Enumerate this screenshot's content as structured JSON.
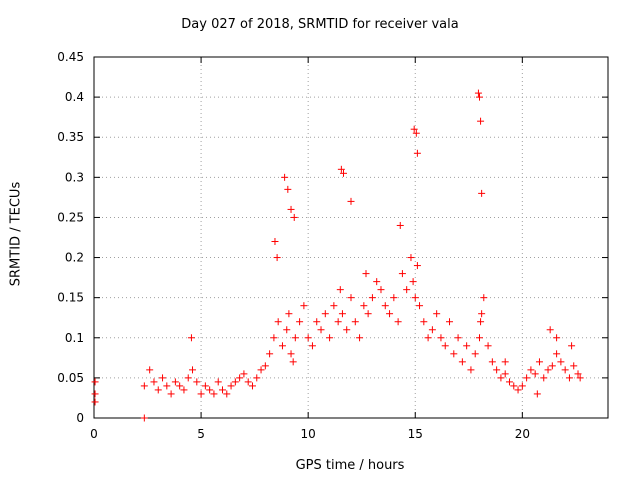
{
  "chart_data": {
    "type": "scatter",
    "title": "Day 027 of 2018, SRMTID for receiver vala",
    "xlabel": "GPS time / hours",
    "ylabel": "SRMTID / TECUs",
    "xlim": [
      0,
      24.0
    ],
    "ylim": [
      0,
      0.45
    ],
    "x_ticks": [
      0,
      5,
      10,
      15,
      20
    ],
    "y_ticks": [
      0,
      0.05,
      0.1,
      0.15,
      0.2,
      0.25,
      0.3,
      0.35,
      0.4,
      0.45
    ],
    "grid": true,
    "marker": "+",
    "color": "#ff0000",
    "series": [
      {
        "name": "SRMTID",
        "x": [
          0.05,
          0.05,
          0.05,
          2.35,
          2.35,
          2.6,
          2.8,
          3.0,
          3.2,
          3.4,
          3.6,
          3.8,
          4.0,
          4.2,
          4.4,
          4.6,
          4.8,
          5.0,
          5.2,
          5.4,
          5.6,
          5.8,
          6.0,
          6.2,
          6.4,
          6.6,
          6.8,
          7.0,
          7.2,
          7.4,
          7.6,
          7.8,
          8.0,
          8.2,
          8.4,
          8.6,
          8.8,
          9.0,
          9.1,
          9.2,
          9.3,
          9.4,
          9.6,
          9.8,
          10.0,
          10.2,
          10.4,
          10.6,
          10.8,
          11.0,
          11.2,
          11.4,
          11.5,
          11.6,
          11.8,
          12.0,
          12.2,
          12.4,
          12.6,
          12.8,
          13.0,
          13.2,
          13.4,
          13.6,
          13.8,
          14.0,
          14.2,
          14.4,
          14.6,
          14.8,
          14.9,
          15.0,
          15.1,
          15.2,
          15.4,
          15.6,
          15.8,
          16.0,
          16.2,
          16.4,
          16.6,
          16.8,
          17.0,
          17.2,
          17.4,
          17.6,
          17.8,
          18.0,
          18.05,
          18.1,
          18.2,
          18.4,
          18.6,
          18.8,
          19.0,
          19.2,
          19.4,
          19.6,
          19.8,
          20.0,
          20.2,
          20.4,
          20.6,
          20.8,
          21.0,
          21.2,
          21.4,
          21.6,
          21.8,
          22.0,
          22.2,
          22.4,
          22.6,
          22.7,
          8.9,
          9.05,
          9.2,
          11.55,
          11.65,
          12.0,
          14.95,
          15.05,
          15.1,
          17.95,
          18.0,
          18.05,
          18.1,
          9.35,
          8.45,
          8.55,
          4.55,
          12.7,
          14.3,
          21.3,
          21.6,
          22.3,
          19.2,
          20.7
        ],
        "y": [
          0.045,
          0.03,
          0.02,
          0.0,
          0.04,
          0.06,
          0.045,
          0.035,
          0.05,
          0.04,
          0.03,
          0.045,
          0.04,
          0.035,
          0.05,
          0.06,
          0.045,
          0.03,
          0.04,
          0.035,
          0.03,
          0.045,
          0.035,
          0.03,
          0.04,
          0.045,
          0.05,
          0.055,
          0.045,
          0.04,
          0.05,
          0.06,
          0.065,
          0.08,
          0.1,
          0.12,
          0.09,
          0.11,
          0.13,
          0.08,
          0.07,
          0.1,
          0.12,
          0.14,
          0.1,
          0.09,
          0.12,
          0.11,
          0.13,
          0.1,
          0.14,
          0.12,
          0.16,
          0.13,
          0.11,
          0.15,
          0.12,
          0.1,
          0.14,
          0.13,
          0.15,
          0.17,
          0.16,
          0.14,
          0.13,
          0.15,
          0.12,
          0.18,
          0.16,
          0.2,
          0.17,
          0.15,
          0.19,
          0.14,
          0.12,
          0.1,
          0.11,
          0.13,
          0.1,
          0.09,
          0.12,
          0.08,
          0.1,
          0.07,
          0.09,
          0.06,
          0.08,
          0.1,
          0.12,
          0.13,
          0.15,
          0.09,
          0.07,
          0.06,
          0.05,
          0.055,
          0.045,
          0.04,
          0.035,
          0.04,
          0.05,
          0.06,
          0.055,
          0.07,
          0.05,
          0.06,
          0.065,
          0.08,
          0.07,
          0.06,
          0.05,
          0.065,
          0.055,
          0.05,
          0.3,
          0.285,
          0.26,
          0.31,
          0.305,
          0.27,
          0.36,
          0.355,
          0.33,
          0.405,
          0.4,
          0.37,
          0.28,
          0.25,
          0.22,
          0.2,
          0.1,
          0.18,
          0.24,
          0.11,
          0.1,
          0.09,
          0.07,
          0.03
        ]
      }
    ]
  }
}
